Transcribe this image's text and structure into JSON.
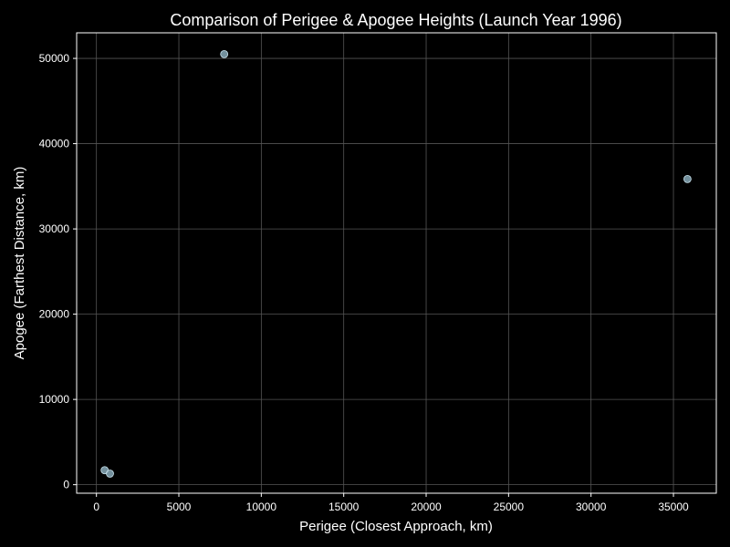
{
  "chart_data": {
    "type": "scatter",
    "title": "Comparison of Perigee & Apogee Heights (Launch Year 1996)",
    "xlabel": "Perigee (Closest Approach, km)",
    "ylabel": "Apogee (Farthest Distance, km)",
    "xlim": [
      -1200,
      37600
    ],
    "ylim": [
      -1000,
      53000
    ],
    "xticks": [
      0,
      5000,
      10000,
      15000,
      20000,
      25000,
      30000,
      35000
    ],
    "yticks": [
      0,
      10000,
      20000,
      30000,
      40000,
      50000
    ],
    "grid": true,
    "points": [
      {
        "x": 7750,
        "y": 50500
      },
      {
        "x": 35850,
        "y": 35850
      },
      {
        "x": 500,
        "y": 1700
      },
      {
        "x": 820,
        "y": 1300
      }
    ]
  },
  "colors": {
    "background": "#000000",
    "axis": "#ffffff",
    "grid": "#555555",
    "point_fill": "#87a9b8",
    "point_stroke": "#c9e2ec",
    "text": "#ffffff"
  }
}
